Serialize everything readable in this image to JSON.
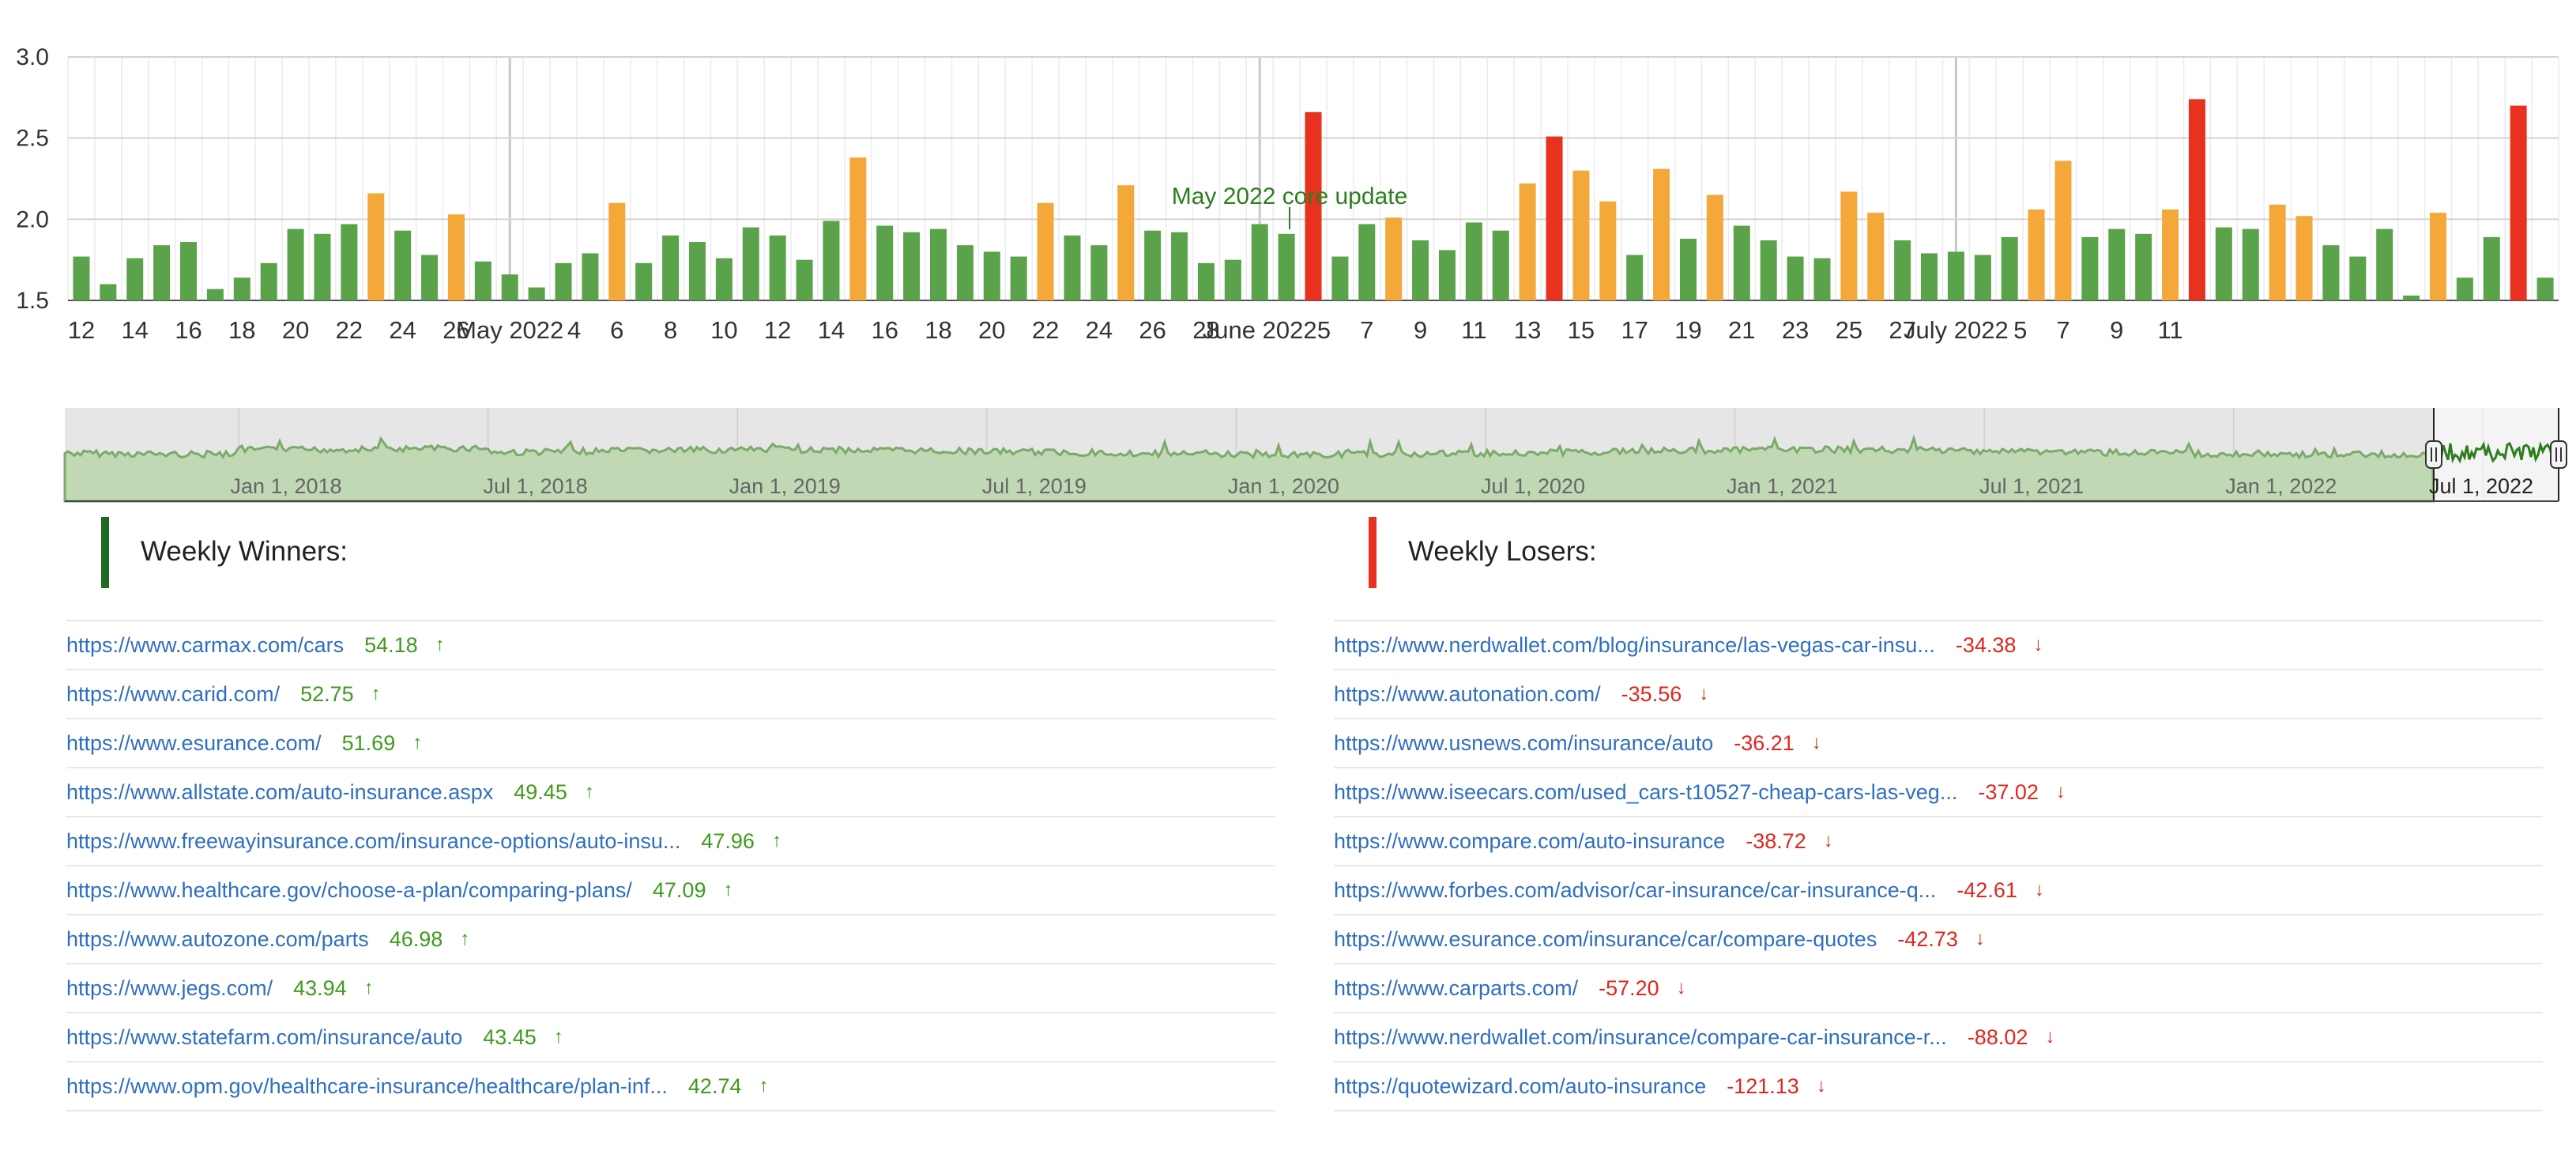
{
  "chart_data": [
    {
      "type": "bar",
      "ylim": [
        1.5,
        3.0
      ],
      "yticks": [
        "3.0",
        "2.5",
        "2.0",
        "1.5"
      ],
      "xticks": [
        "12",
        "14",
        "16",
        "18",
        "20",
        "22",
        "24",
        "26",
        "May 2022",
        "4",
        "6",
        "8",
        "10",
        "12",
        "14",
        "16",
        "18",
        "20",
        "22",
        "24",
        "26",
        "28",
        "June 2022",
        "5",
        "7",
        "9",
        "11",
        "13",
        "15",
        "17",
        "19",
        "21",
        "23",
        "25",
        "27",
        "July 2022",
        "5",
        "7",
        "9",
        "11"
      ],
      "values": [
        1.77,
        1.6,
        1.76,
        1.84,
        1.86,
        1.57,
        1.64,
        1.73,
        1.94,
        1.91,
        1.97,
        2.16,
        1.93,
        1.78,
        2.03,
        1.74,
        1.66,
        1.58,
        1.73,
        1.79,
        2.1,
        1.73,
        1.9,
        1.86,
        1.76,
        1.95,
        1.9,
        1.75,
        1.99,
        2.38,
        1.96,
        1.92,
        1.94,
        1.84,
        1.8,
        1.77,
        2.1,
        1.9,
        1.84,
        2.21,
        1.93,
        1.92,
        1.73,
        1.75,
        1.97,
        1.91,
        2.66,
        1.77,
        1.97,
        2.01,
        1.87,
        1.81,
        1.98,
        1.93,
        2.22,
        2.51,
        2.3,
        2.11,
        1.78,
        2.31,
        1.88,
        2.15,
        1.96,
        1.87,
        1.77,
        1.76,
        2.17,
        2.04,
        1.87,
        1.79,
        1.8,
        1.78,
        1.89,
        2.06,
        2.36,
        1.89,
        1.94,
        1.91,
        2.06,
        2.74,
        1.95,
        1.94,
        2.09,
        2.02,
        1.84,
        1.77,
        1.94,
        1.53,
        2.04,
        1.64,
        1.89,
        2.7,
        1.64
      ],
      "bar_colors": [
        "green",
        "green",
        "green",
        "green",
        "green",
        "green",
        "green",
        "green",
        "green",
        "green",
        "green",
        "orange",
        "green",
        "green",
        "orange",
        "green",
        "green",
        "green",
        "green",
        "green",
        "orange",
        "green",
        "green",
        "green",
        "green",
        "green",
        "green",
        "green",
        "green",
        "orange",
        "green",
        "green",
        "green",
        "green",
        "green",
        "green",
        "orange",
        "green",
        "green",
        "orange",
        "green",
        "green",
        "green",
        "green",
        "green",
        "green",
        "red",
        "green",
        "green",
        "orange",
        "green",
        "green",
        "green",
        "green",
        "orange",
        "red",
        "orange",
        "orange",
        "green",
        "orange",
        "green",
        "orange",
        "green",
        "green",
        "green",
        "green",
        "orange",
        "orange",
        "green",
        "green",
        "green",
        "green",
        "green",
        "orange",
        "orange",
        "green",
        "green",
        "green",
        "orange",
        "red",
        "green",
        "green",
        "orange",
        "orange",
        "green",
        "green",
        "green",
        "green",
        "orange",
        "green",
        "green",
        "red",
        "green"
      ],
      "annotation": {
        "bar": 46,
        "text": "May 2022 core update"
      },
      "grid": true
    },
    {
      "type": "area",
      "xticks": [
        "Jan 1, 2018",
        "Jul 1, 2018",
        "Jan 1, 2019",
        "Jul 1, 2019",
        "Jan 1, 2020",
        "Jul 1, 2020",
        "Jan 1, 2021",
        "Jul 1, 2021",
        "Jan 1, 2022",
        "Jul 1, 2022"
      ]
    }
  ],
  "colors": {
    "green": "#5aa34a",
    "orange": "#f5a83a",
    "red": "#e8321f",
    "link": "#2f6fc0",
    "up": "#3f9a1e",
    "down": "#e0261e",
    "navFill": "#bcd6b0",
    "navLine": "#7aab6a"
  },
  "winners": {
    "title": "Weekly Winners:",
    "bar_color": "#1e6a1e",
    "rows": [
      {
        "url": "https://www.carmax.com/cars",
        "value": "54.18",
        "icon": "up-arrow-icon"
      },
      {
        "url": "https://www.carid.com/",
        "value": "52.75",
        "icon": "up-arrow-icon"
      },
      {
        "url": "https://www.esurance.com/",
        "value": "51.69",
        "icon": "up-arrow-icon"
      },
      {
        "url": "https://www.allstate.com/auto-insurance.aspx",
        "value": "49.45",
        "icon": "up-arrow-icon"
      },
      {
        "url": "https://www.freewayinsurance.com/insurance-options/auto-insu...",
        "value": "47.96",
        "icon": "up-arrow-icon"
      },
      {
        "url": "https://www.healthcare.gov/choose-a-plan/comparing-plans/",
        "value": "47.09",
        "icon": "up-arrow-icon"
      },
      {
        "url": "https://www.autozone.com/parts",
        "value": "46.98",
        "icon": "up-arrow-icon"
      },
      {
        "url": "https://www.jegs.com/",
        "value": "43.94",
        "icon": "up-arrow-icon"
      },
      {
        "url": "https://www.statefarm.com/insurance/auto",
        "value": "43.45",
        "icon": "up-arrow-icon"
      },
      {
        "url": "https://www.opm.gov/healthcare-insurance/healthcare/plan-inf...",
        "value": "42.74",
        "icon": "up-arrow-icon"
      }
    ]
  },
  "losers": {
    "title": "Weekly Losers:",
    "bar_color": "#e8321f",
    "rows": [
      {
        "url": "https://www.nerdwallet.com/blog/insurance/las-vegas-car-insu...",
        "value": "-34.38",
        "icon": "down-arrow-icon"
      },
      {
        "url": "https://www.autonation.com/",
        "value": "-35.56",
        "icon": "down-arrow-icon"
      },
      {
        "url": "https://www.usnews.com/insurance/auto",
        "value": "-36.21",
        "icon": "down-arrow-icon"
      },
      {
        "url": "https://www.iseecars.com/used_cars-t10527-cheap-cars-las-veg...",
        "value": "-37.02",
        "icon": "down-arrow-icon"
      },
      {
        "url": "https://www.compare.com/auto-insurance",
        "value": "-38.72",
        "icon": "down-arrow-icon"
      },
      {
        "url": "https://www.forbes.com/advisor/car-insurance/car-insurance-q...",
        "value": "-42.61",
        "icon": "down-arrow-icon"
      },
      {
        "url": "https://www.esurance.com/insurance/car/compare-quotes",
        "value": "-42.73",
        "icon": "down-arrow-icon"
      },
      {
        "url": "https://www.carparts.com/",
        "value": "-57.20",
        "icon": "down-arrow-icon"
      },
      {
        "url": "https://www.nerdwallet.com/insurance/compare-car-insurance-r...",
        "value": "-88.02",
        "icon": "down-arrow-icon"
      },
      {
        "url": "https://quotewizard.com/auto-insurance",
        "value": "-121.13",
        "icon": "down-arrow-icon"
      }
    ]
  }
}
